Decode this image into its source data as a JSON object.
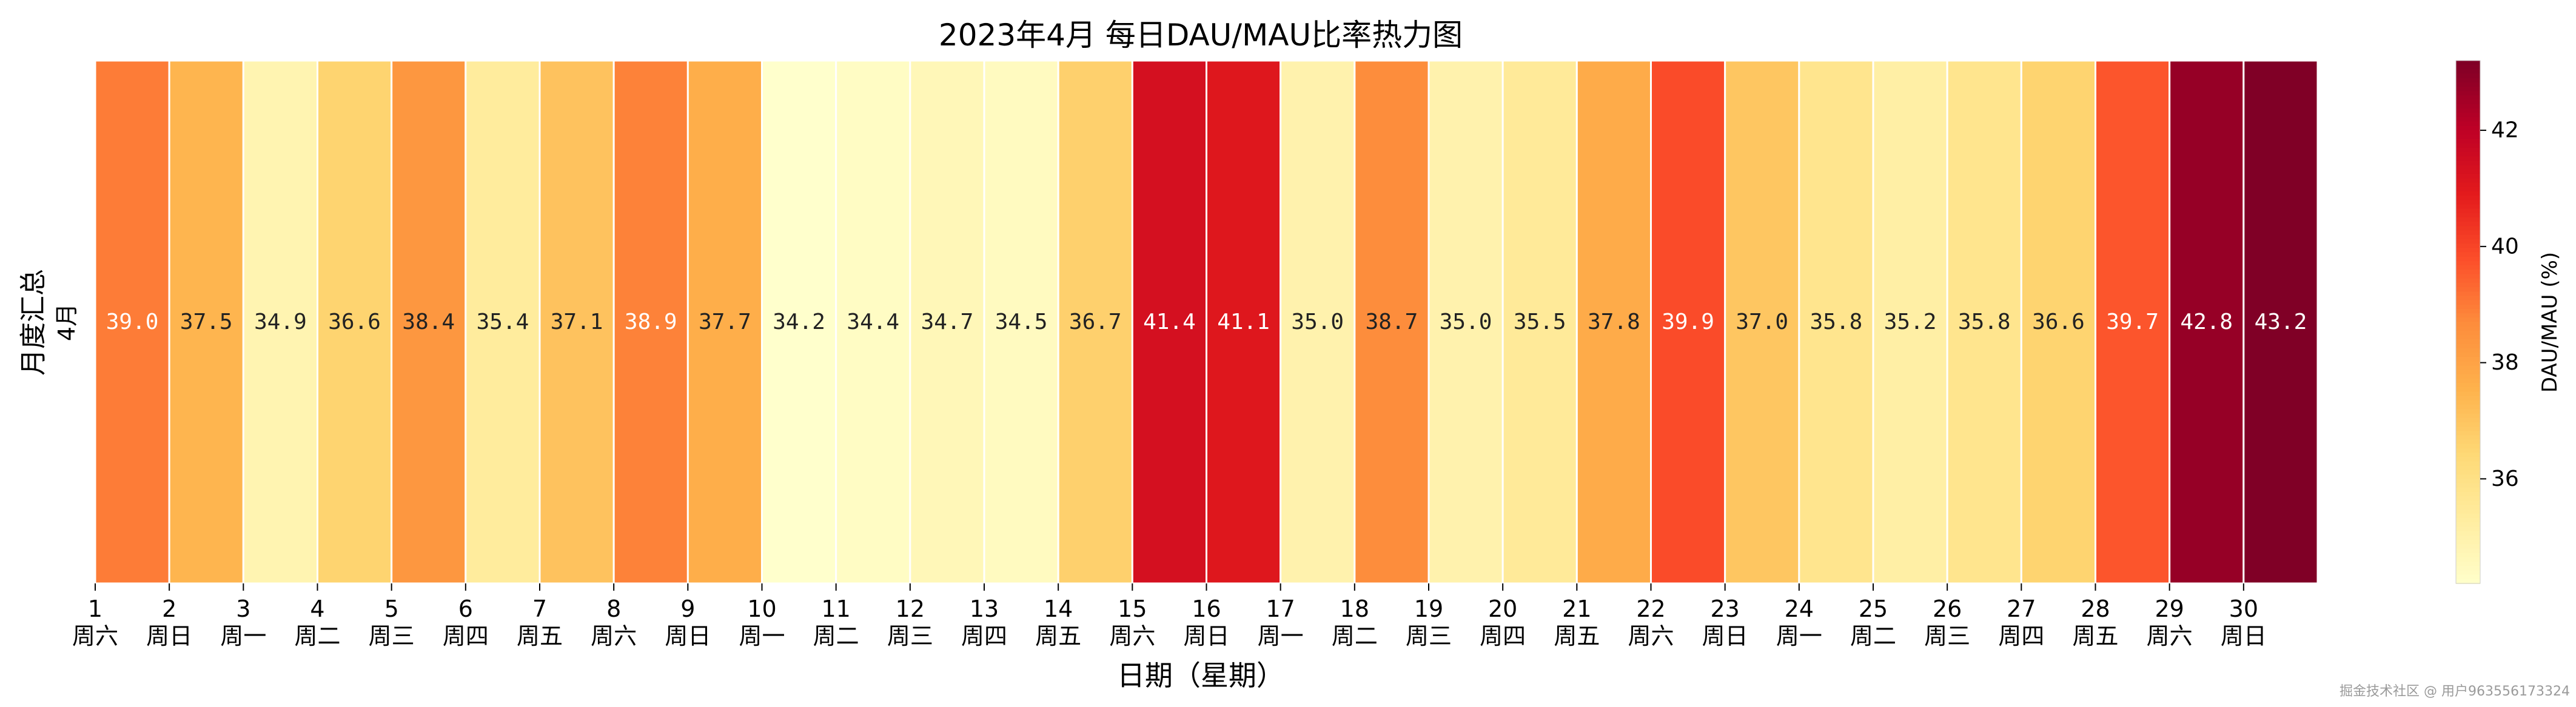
{
  "chart_data": {
    "type": "heatmap",
    "title": "2023年4月 每日DAU/MAU比率热力图",
    "xlabel": "日期（星期）",
    "ylabel": "月度汇总",
    "row_labels": [
      "4月"
    ],
    "x_tick_numbers": [
      "1",
      "2",
      "3",
      "4",
      "5",
      "6",
      "7",
      "8",
      "9",
      "10",
      "11",
      "12",
      "13",
      "14",
      "15",
      "16",
      "17",
      "18",
      "19",
      "20",
      "21",
      "22",
      "23",
      "24",
      "25",
      "26",
      "27",
      "28",
      "29",
      "30"
    ],
    "x_tick_weekdays": [
      "周六",
      "周日",
      "周一",
      "周二",
      "周三",
      "周四",
      "周五",
      "周六",
      "周日",
      "周一",
      "周二",
      "周三",
      "周四",
      "周五",
      "周六",
      "周日",
      "周一",
      "周二",
      "周三",
      "周四",
      "周五",
      "周六",
      "周日",
      "周一",
      "周二",
      "周三",
      "周四",
      "周五",
      "周六",
      "周日"
    ],
    "values": [
      39.0,
      37.5,
      34.9,
      36.6,
      38.4,
      35.4,
      37.1,
      38.9,
      37.7,
      34.2,
      34.4,
      34.7,
      34.5,
      36.7,
      41.4,
      41.1,
      35.0,
      38.7,
      35.0,
      35.5,
      37.8,
      39.9,
      37.0,
      35.8,
      35.2,
      35.8,
      36.6,
      39.7,
      42.8,
      43.2
    ],
    "colorbar": {
      "label": "DAU/MAU (%)",
      "range": [
        34.2,
        43.2
      ],
      "ticks": [
        36,
        38,
        40,
        42
      ],
      "colormap": "YlOrRd"
    },
    "grid": false
  },
  "watermark": "掘金技术社区 @ 用户963556173324"
}
